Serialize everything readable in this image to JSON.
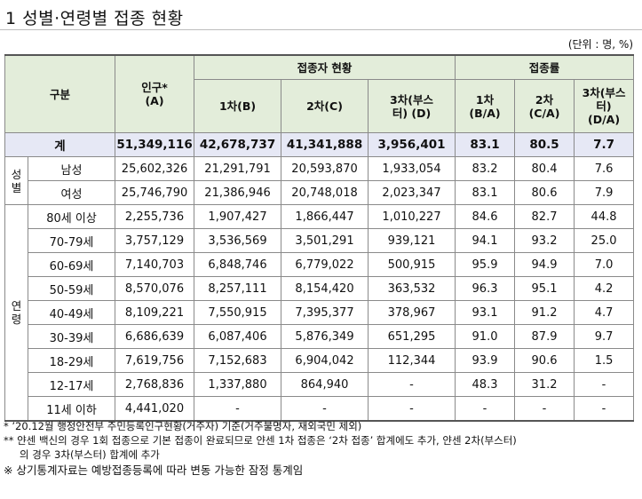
{
  "title": "1  성별·연령별 접종 현황",
  "unit": "(단위 : 명, %)",
  "headers": {
    "category": "구분",
    "population": "인구*",
    "population_code": "(A)",
    "vaccinated_group": "접종자 현황",
    "rate_group": "접종률",
    "dose1": "1차(B)",
    "dose2": "2차(C)",
    "dose3_a": "3차(부스",
    "dose3_b": "터) (D)",
    "rate1_a": "1차",
    "rate1_b": "(B/A)",
    "rate2_a": "2차",
    "rate2_b": "(C/A)",
    "rate3_a": "3차(부스",
    "rate3_b": "터)",
    "rate3_c": "(D/A)"
  },
  "groups": {
    "sex_a": "성",
    "sex_b": "별",
    "age_a": "연",
    "age_b": "령"
  },
  "total": {
    "label": "계",
    "population": "51,349,116",
    "dose1": "42,678,737",
    "dose2": "41,341,888",
    "dose3": "3,956,401",
    "rate1": "83.1",
    "rate2": "80.5",
    "rate3": "7.7"
  },
  "sex_rows": [
    {
      "label": "남성",
      "population": "25,602,326",
      "dose1": "21,291,791",
      "dose2": "20,593,870",
      "dose3": "1,933,054",
      "rate1": "83.2",
      "rate2": "80.4",
      "rate3": "7.6"
    },
    {
      "label": "여성",
      "population": "25,746,790",
      "dose1": "21,386,946",
      "dose2": "20,748,018",
      "dose3": "2,023,347",
      "rate1": "83.1",
      "rate2": "80.6",
      "rate3": "7.9"
    }
  ],
  "age_rows": [
    {
      "label": "80세 이상",
      "population": "2,255,736",
      "dose1": "1,907,427",
      "dose2": "1,866,447",
      "dose3": "1,010,227",
      "rate1": "84.6",
      "rate2": "82.7",
      "rate3": "44.8"
    },
    {
      "label": "70-79세",
      "population": "3,757,129",
      "dose1": "3,536,569",
      "dose2": "3,501,291",
      "dose3": "939,121",
      "rate1": "94.1",
      "rate2": "93.2",
      "rate3": "25.0"
    },
    {
      "label": "60-69세",
      "population": "7,140,703",
      "dose1": "6,848,746",
      "dose2": "6,779,022",
      "dose3": "500,915",
      "rate1": "95.9",
      "rate2": "94.9",
      "rate3": "7.0"
    },
    {
      "label": "50-59세",
      "population": "8,570,076",
      "dose1": "8,257,111",
      "dose2": "8,154,420",
      "dose3": "363,532",
      "rate1": "96.3",
      "rate2": "95.1",
      "rate3": "4.2"
    },
    {
      "label": "40-49세",
      "population": "8,109,221",
      "dose1": "7,550,915",
      "dose2": "7,395,377",
      "dose3": "378,967",
      "rate1": "93.1",
      "rate2": "91.2",
      "rate3": "4.7"
    },
    {
      "label": "30-39세",
      "population": "6,686,639",
      "dose1": "6,087,406",
      "dose2": "5,876,349",
      "dose3": "651,295",
      "rate1": "91.0",
      "rate2": "87.9",
      "rate3": "9.7"
    },
    {
      "label": "18-29세",
      "population": "7,619,756",
      "dose1": "7,152,683",
      "dose2": "6,904,042",
      "dose3": "112,344",
      "rate1": "93.9",
      "rate2": "90.6",
      "rate3": "1.5"
    },
    {
      "label": "12-17세",
      "population": "2,768,836",
      "dose1": "1,337,880",
      "dose2": "864,940",
      "dose3": "-",
      "rate1": "48.3",
      "rate2": "31.2",
      "rate3": "-"
    },
    {
      "label": "11세 이하",
      "population": "4,441,020",
      "dose1": "-",
      "dose2": "-",
      "dose3": "-",
      "rate1": "-",
      "rate2": "-",
      "rate3": "-"
    }
  ],
  "notes": {
    "n1": "* ’20.12월 행정안전부 주민등록인구현황(거주자) 기준(거주불명자, 재외국민 제외)",
    "n2_a": "** 얀센 백신의 경우 1회 접종으로 기본 접종이 완료되므로 얀센 1차 접종은 ‘2차 접종’ 합계에도 추가, 얀센 2차(부스터)",
    "n2_b": "의 경우 3차(부스터) 합계에 추가",
    "n3": "※ 상기통계자료는 예방접종등록에 따라 변동 가능한 잠정 통계임"
  }
}
